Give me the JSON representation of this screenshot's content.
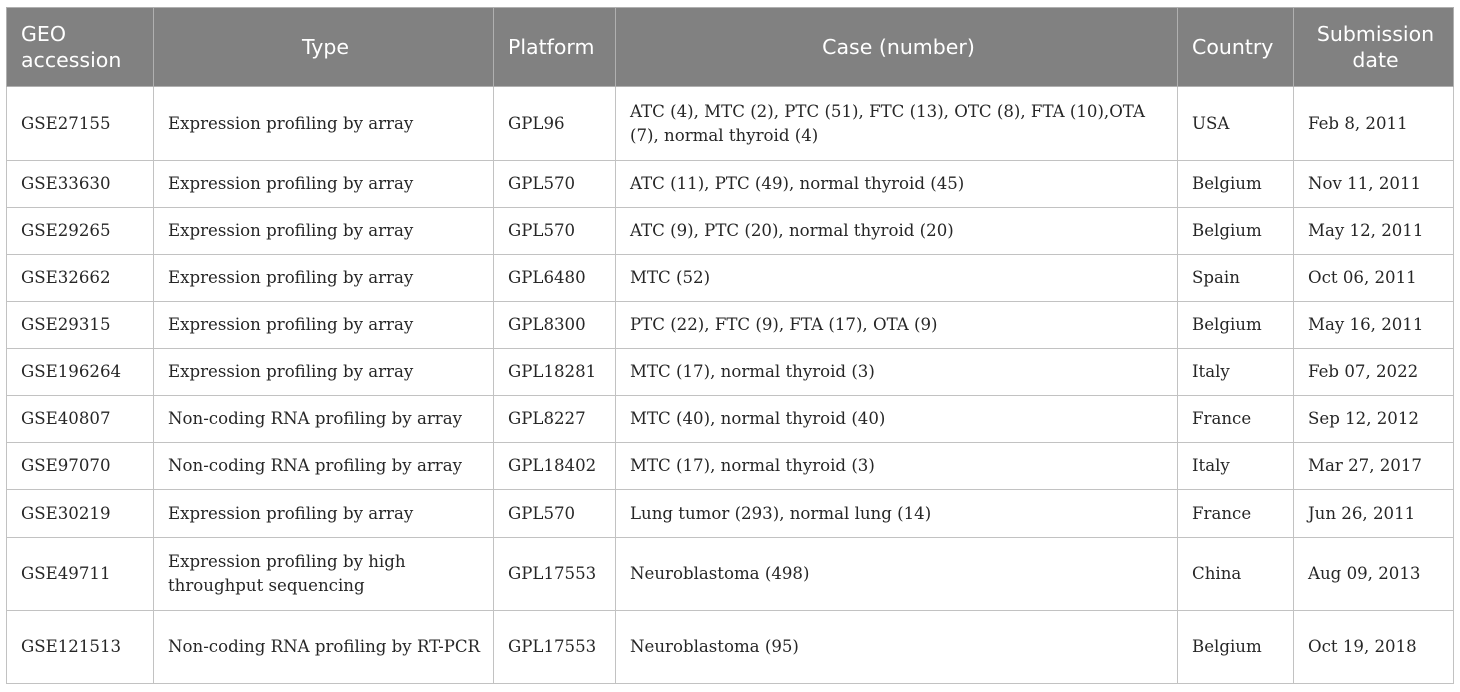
{
  "table": {
    "headers": {
      "geo_accession": "GEO accession",
      "type": "Type",
      "platform": "Platform",
      "case_number": "Case (number)",
      "country": "Country",
      "submission_date": "Submission date"
    },
    "rows": [
      {
        "geo": "GSE27155",
        "type": "Expression profiling by array",
        "platform": "GPL96",
        "cases": "ATC (4), MTC (2), PTC (51), FTC (13), OTC (8), FTA (10),OTA (7), normal thyroid (4)",
        "country": "USA",
        "date": "Feb 8, 2011"
      },
      {
        "geo": "GSE33630",
        "type": "Expression profiling by array",
        "platform": "GPL570",
        "cases": "ATC (11), PTC (49), normal thyroid (45)",
        "country": "Belgium",
        "date": "Nov 11, 2011"
      },
      {
        "geo": "GSE29265",
        "type": "Expression profiling by array",
        "platform": "GPL570",
        "cases": "ATC (9), PTC (20), normal thyroid (20)",
        "country": "Belgium",
        "date": "May 12, 2011"
      },
      {
        "geo": "GSE32662",
        "type": "Expression profiling by array",
        "platform": "GPL6480",
        "cases": "MTC (52)",
        "country": "Spain",
        "date": "Oct 06, 2011"
      },
      {
        "geo": "GSE29315",
        "type": "Expression profiling by array",
        "platform": "GPL8300",
        "cases": "PTC (22), FTC (9), FTA (17), OTA (9)",
        "country": "Belgium",
        "date": "May 16, 2011"
      },
      {
        "geo": "GSE196264",
        "type": "Expression profiling by array",
        "platform": "GPL18281",
        "cases": "MTC (17), normal thyroid (3)",
        "country": "Italy",
        "date": "Feb 07, 2022"
      },
      {
        "geo": "GSE40807",
        "type": "Non-coding RNA profiling by array",
        "platform": "GPL8227",
        "cases": "MTC (40), normal thyroid (40)",
        "country": "France",
        "date": "Sep 12, 2012"
      },
      {
        "geo": "GSE97070",
        "type": "Non-coding RNA profiling by array",
        "platform": "GPL18402",
        "cases": "MTC (17), normal thyroid (3)",
        "country": "Italy",
        "date": "Mar 27, 2017"
      },
      {
        "geo": "GSE30219",
        "type": "Expression profiling by array",
        "platform": "GPL570",
        "cases": "Lung tumor (293), normal lung (14)",
        "country": "France",
        "date": "Jun 26, 2011"
      },
      {
        "geo": "GSE49711",
        "type": "Expression profiling by high throughput sequencing",
        "platform": "GPL17553",
        "cases": "Neuroblastoma (498)",
        "country": "China",
        "date": "Aug 09, 2013"
      },
      {
        "geo": "GSE121513",
        "type": "Non-coding RNA profiling by RT-PCR",
        "platform": "GPL17553",
        "cases": "Neuroblastoma (95)",
        "country": "Belgium",
        "date": "Oct 19, 2018"
      }
    ]
  }
}
